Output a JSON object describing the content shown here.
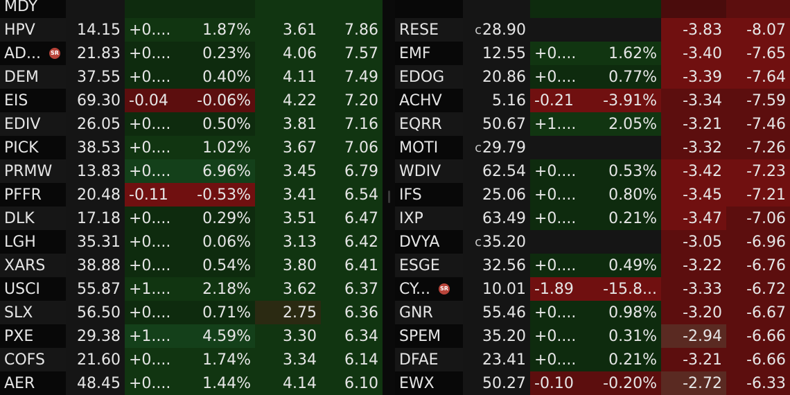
{
  "left_rows": [
    {
      "sym": "MDY",
      "price": "",
      "chg": "",
      "pct": "",
      "a": "",
      "b": "",
      "cls": [
        "dark",
        "neutral",
        "g1",
        "g1",
        "g2",
        "g2"
      ]
    },
    {
      "sym": "HPV",
      "price": "14.15",
      "chg": "+0....",
      "pct": "1.87%",
      "a": "3.61",
      "b": "7.86",
      "cls": [
        "light",
        "neutral",
        "g2",
        "g2",
        "g2",
        "g2"
      ]
    },
    {
      "sym": "AD...",
      "badge": "SR",
      "price": "21.83",
      "chg": "+0....",
      "pct": "0.23%",
      "a": "4.06",
      "b": "7.57",
      "cls": [
        "dark",
        "neutral",
        "g1",
        "g1",
        "g2",
        "g2"
      ]
    },
    {
      "sym": "DEM",
      "price": "37.55",
      "chg": "+0....",
      "pct": "0.40%",
      "a": "4.11",
      "b": "7.49",
      "cls": [
        "light",
        "neutral",
        "g1",
        "g1",
        "g2",
        "g2"
      ]
    },
    {
      "sym": "EIS",
      "price": "69.30",
      "chg": "-0.04",
      "pct": "-0.06%",
      "a": "4.22",
      "b": "7.20",
      "cls": [
        "dark",
        "neutral",
        "r2",
        "r2",
        "g2",
        "g2"
      ]
    },
    {
      "sym": "EDIV",
      "price": "26.05",
      "chg": "+0....",
      "pct": "0.50%",
      "a": "3.81",
      "b": "7.16",
      "cls": [
        "light",
        "neutral",
        "g1",
        "g1",
        "g2",
        "g2"
      ]
    },
    {
      "sym": "PICK",
      "price": "38.53",
      "chg": "+0....",
      "pct": "1.02%",
      "a": "3.67",
      "b": "7.06",
      "cls": [
        "dark",
        "neutral",
        "g2",
        "g2",
        "g2",
        "g2"
      ]
    },
    {
      "sym": "PRMW",
      "price": "13.83",
      "chg": "+0....",
      "pct": "6.96%",
      "a": "3.45",
      "b": "6.79",
      "cls": [
        "light",
        "neutral",
        "g3",
        "g3",
        "g2",
        "g2"
      ]
    },
    {
      "sym": "PFFR",
      "price": "20.48",
      "chg": "-0.11",
      "pct": "-0.53%",
      "a": "3.41",
      "b": "6.54",
      "cls": [
        "dark",
        "neutral",
        "r3",
        "r3",
        "g2",
        "g2"
      ]
    },
    {
      "sym": "DLK",
      "price": "17.18",
      "chg": "+0....",
      "pct": "0.29%",
      "a": "3.51",
      "b": "6.47",
      "cls": [
        "light",
        "neutral",
        "g1",
        "g1",
        "g2",
        "g2"
      ]
    },
    {
      "sym": "LGH",
      "price": "35.31",
      "chg": "+0....",
      "pct": "0.06%",
      "a": "3.13",
      "b": "6.42",
      "cls": [
        "dark",
        "neutral",
        "g1",
        "g1",
        "g2",
        "g2"
      ]
    },
    {
      "sym": "XARS",
      "price": "38.88",
      "chg": "+0....",
      "pct": "0.54%",
      "a": "3.80",
      "b": "6.41",
      "cls": [
        "light",
        "neutral",
        "g1",
        "g1",
        "g2",
        "g2"
      ]
    },
    {
      "sym": "USCI",
      "price": "55.87",
      "chg": "+1....",
      "pct": "2.18%",
      "a": "3.62",
      "b": "6.37",
      "cls": [
        "dark",
        "neutral",
        "g2",
        "g2",
        "g2",
        "g2"
      ]
    },
    {
      "sym": "SLX",
      "price": "56.50",
      "chg": "+0....",
      "pct": "0.71%",
      "a": "2.75",
      "b": "6.36",
      "cls": [
        "light",
        "neutral",
        "g1",
        "g1",
        "olive",
        "g2"
      ]
    },
    {
      "sym": "PXE",
      "price": "29.38",
      "chg": "+1....",
      "pct": "4.59%",
      "a": "3.30",
      "b": "6.34",
      "cls": [
        "dark",
        "neutral",
        "g3",
        "g3",
        "g2",
        "g2"
      ]
    },
    {
      "sym": "COFS",
      "price": "21.60",
      "chg": "+0....",
      "pct": "1.74%",
      "a": "3.34",
      "b": "6.14",
      "cls": [
        "light",
        "neutral",
        "g2",
        "g2",
        "g2",
        "g2"
      ]
    },
    {
      "sym": "AER",
      "price": "48.45",
      "chg": "+0....",
      "pct": "1.44%",
      "a": "4.14",
      "b": "6.10",
      "cls": [
        "dark",
        "neutral",
        "g2",
        "g2",
        "g2",
        "g2"
      ]
    }
  ],
  "right_rows": [
    {
      "sym": "",
      "price": "",
      "chg": "",
      "pct": "",
      "a": "",
      "b": "",
      "cls": [
        "dark",
        "neutral",
        "g1",
        "g1",
        "r1",
        "r2"
      ]
    },
    {
      "sym": "RESE",
      "prefix": "c",
      "price": "28.90",
      "chg": "",
      "pct": "",
      "a": "-3.83",
      "b": "-8.07",
      "cls": [
        "light",
        "neutral",
        "neutral",
        "neutral",
        "r3",
        "r3"
      ]
    },
    {
      "sym": "EMF",
      "price": "12.55",
      "chg": "+0....",
      "pct": "1.62%",
      "a": "-3.40",
      "b": "-7.65",
      "cls": [
        "dark",
        "neutral",
        "g2",
        "g2",
        "r3",
        "r3"
      ]
    },
    {
      "sym": "EDOG",
      "price": "20.86",
      "chg": "+0....",
      "pct": "0.77%",
      "a": "-3.39",
      "b": "-7.64",
      "cls": [
        "light",
        "neutral",
        "g1",
        "g1",
        "r3",
        "r3"
      ]
    },
    {
      "sym": "ACHV",
      "price": "5.16",
      "chg": "-0.21",
      "pct": "-3.91%",
      "a": "-3.34",
      "b": "-7.59",
      "cls": [
        "dark",
        "neutral",
        "r3",
        "r3",
        "r2",
        "r2"
      ]
    },
    {
      "sym": "EQRR",
      "price": "50.67",
      "chg": "+1....",
      "pct": "2.05%",
      "a": "-3.21",
      "b": "-7.46",
      "cls": [
        "light",
        "neutral",
        "g2",
        "g2",
        "r2",
        "r2"
      ]
    },
    {
      "sym": "MOTI",
      "prefix": "c",
      "price": "29.79",
      "chg": "",
      "pct": "",
      "a": "-3.32",
      "b": "-7.26",
      "cls": [
        "dark",
        "neutral",
        "neutral",
        "neutral",
        "r2",
        "r2"
      ]
    },
    {
      "sym": "WDIV",
      "price": "62.54",
      "chg": "+0....",
      "pct": "0.53%",
      "a": "-3.42",
      "b": "-7.23",
      "cls": [
        "light",
        "neutral",
        "g1",
        "g1",
        "r3",
        "r3"
      ]
    },
    {
      "sym": "IFS",
      "price": "25.06",
      "chg": "+0....",
      "pct": "0.80%",
      "a": "-3.45",
      "b": "-7.21",
      "cls": [
        "dark",
        "neutral",
        "g1",
        "g1",
        "r3",
        "r3"
      ]
    },
    {
      "sym": "IXP",
      "price": "63.49",
      "chg": "+0....",
      "pct": "0.21%",
      "a": "-3.47",
      "b": "-7.06",
      "cls": [
        "light",
        "neutral",
        "g1",
        "g1",
        "r3",
        "r2"
      ]
    },
    {
      "sym": "DVYA",
      "prefix": "c",
      "price": "35.20",
      "chg": "",
      "pct": "",
      "a": "-3.05",
      "b": "-6.96",
      "cls": [
        "dark",
        "neutral",
        "neutral",
        "neutral",
        "r2",
        "r2"
      ]
    },
    {
      "sym": "ESGE",
      "price": "32.56",
      "chg": "+0....",
      "pct": "0.49%",
      "a": "-3.22",
      "b": "-6.76",
      "cls": [
        "light",
        "neutral",
        "g1",
        "g1",
        "r2",
        "r2"
      ]
    },
    {
      "sym": "CY...",
      "badge": "SR",
      "price": "10.01",
      "chg": "-1.89",
      "pct": "-15.8...",
      "a": "-3.33",
      "b": "-6.72",
      "cls": [
        "dark",
        "neutral",
        "r3",
        "r3",
        "r2",
        "r2"
      ]
    },
    {
      "sym": "GNR",
      "price": "55.46",
      "chg": "+0....",
      "pct": "0.98%",
      "a": "-3.20",
      "b": "-6.67",
      "cls": [
        "light",
        "neutral",
        "g1",
        "g1",
        "r2",
        "r2"
      ]
    },
    {
      "sym": "SPEM",
      "price": "35.20",
      "chg": "+0....",
      "pct": "0.31%",
      "a": "-2.94",
      "b": "-6.66",
      "cls": [
        "dark",
        "neutral",
        "g1",
        "g1",
        "brown",
        "r2"
      ]
    },
    {
      "sym": "DFAE",
      "price": "23.41",
      "chg": "+0....",
      "pct": "0.21%",
      "a": "-3.21",
      "b": "-6.66",
      "cls": [
        "light",
        "neutral",
        "g1",
        "g1",
        "r2",
        "r2"
      ]
    },
    {
      "sym": "EWX",
      "price": "50.27",
      "chg": "-0.10",
      "pct": "-0.20%",
      "a": "-2.72",
      "b": "-6.33",
      "cls": [
        "dark",
        "neutral",
        "r2",
        "r2",
        "brown",
        "r2"
      ]
    }
  ]
}
